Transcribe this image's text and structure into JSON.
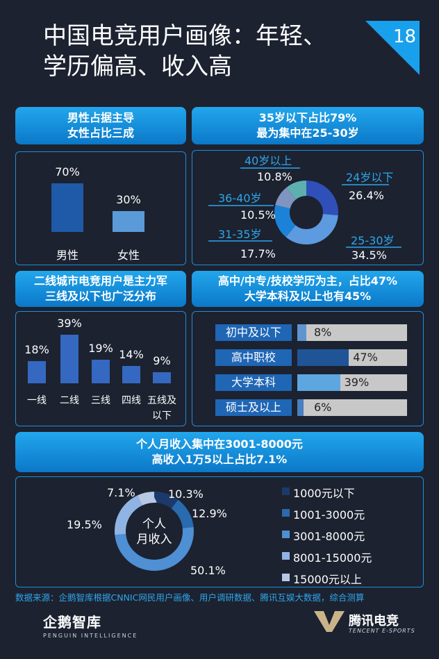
{
  "header": {
    "title_line1": "中国电竞用户画像：年轻、",
    "title_line2": "学历偏高、收入高",
    "page_number": "18"
  },
  "gender": {
    "banner_line1": "男性占据主导",
    "banner_line2": "女性占比三成",
    "chart_data": {
      "type": "bar",
      "categories": [
        "男性",
        "女性"
      ],
      "values": [
        70,
        30
      ],
      "labels": [
        "70%",
        "30%"
      ]
    }
  },
  "age": {
    "banner_line1": "35岁以下占比79%",
    "banner_line2": "最为集中在25-30岁",
    "chart_data": {
      "type": "pie",
      "categories": [
        "24岁以下",
        "25-30岁",
        "31-35岁",
        "36-40岁",
        "40岁以上"
      ],
      "values": [
        26.4,
        34.5,
        17.7,
        10.5,
        10.8
      ],
      "labels": [
        "26.4%",
        "34.5%",
        "17.7%",
        "10.5%",
        "10.8%"
      ]
    }
  },
  "city": {
    "banner_line1": "二线城市电竞用户是主力军",
    "banner_line2": "三线及以下也广泛分布",
    "chart_data": {
      "type": "bar",
      "categories": [
        "一线",
        "二线",
        "三线",
        "四线",
        "五线及以下"
      ],
      "category_lines": [
        [
          "一线"
        ],
        [
          "二线"
        ],
        [
          "三线"
        ],
        [
          "四线"
        ],
        [
          "五线及",
          "以下"
        ]
      ],
      "values": [
        18,
        39,
        19,
        14,
        9
      ],
      "labels": [
        "18%",
        "39%",
        "19%",
        "14%",
        "9%"
      ]
    }
  },
  "education": {
    "banner_line1": "高中/中专/技校学历为主，占比47%",
    "banner_line2": "大学本科及以上也有45%",
    "chart_data": {
      "type": "bar",
      "categories": [
        "初中及以下",
        "高中职校",
        "大学本科",
        "硕士及以上"
      ],
      "values": [
        8,
        47,
        39,
        6
      ],
      "labels": [
        "8%",
        "47%",
        "39%",
        "6%"
      ],
      "max": 100
    }
  },
  "income": {
    "banner_line1": "个人月收入集中在3001-8000元",
    "banner_line2": "高收入1万5以上占比7.1%",
    "center_line1": "个人",
    "center_line2": "月收入",
    "chart_data": {
      "type": "pie",
      "categories": [
        "1000元以下",
        "1001-3000元",
        "3001-8000元",
        "8001-15000元",
        "15000元以上"
      ],
      "values": [
        10.3,
        12.9,
        50.1,
        19.5,
        7.1
      ],
      "labels": [
        "10.3%",
        "12.9%",
        "50.1%",
        "19.5%",
        "7.1%"
      ]
    }
  },
  "footer": {
    "source": "数据来源：企鹅智库根据CNNIC网民用户画像、用户调研数据、腾讯互娱大数据，综合测算",
    "logo_left_cn": "企鹅智库",
    "logo_left_en": "PENGUIN INTELLIGENCE",
    "logo_right_cn": "腾讯电竞",
    "logo_right_en": "TENCENT E-SPORTS"
  },
  "colors": {
    "background": "#1c2230",
    "accent": "#1e8fd8",
    "banner": "#158fdf",
    "male": "#1e5aa8",
    "female": "#5b9ad8",
    "age": [
      "#2e50b8",
      "#5d9ae0",
      "#1b82d8",
      "#7f94bf",
      "#5db0b0"
    ],
    "city": "#3568c0",
    "edu_label": "#1f66b5",
    "edu_fills": [
      "#5f95cf",
      "#1f5596",
      "#5ea6e0",
      "#4a7fc0"
    ],
    "income": [
      "#1b3a6b",
      "#2a6aae",
      "#4f8fd3",
      "#8fb4e3",
      "#b6c8e4"
    ]
  }
}
